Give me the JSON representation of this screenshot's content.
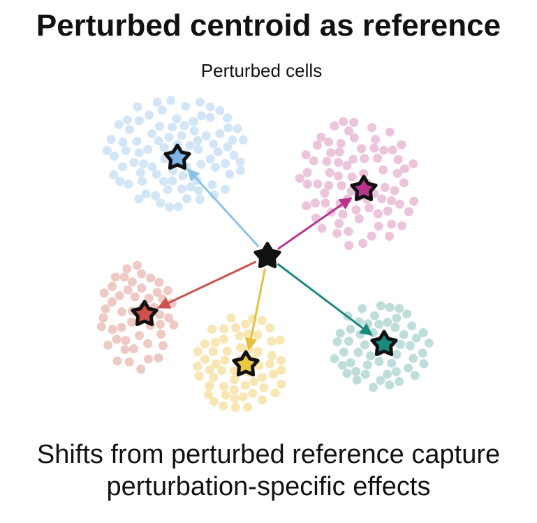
{
  "title": "Perturbed centroid as reference",
  "subtitle": "Perturbed cells",
  "caption": {
    "line1": "Shifts from perturbed reference capture",
    "line2": "perturbation-specific effects"
  },
  "reference": {
    "name": "perturbed-centroid",
    "color": "#111111"
  },
  "clusters": [
    {
      "name": "blue",
      "dot_color": "#d3e6f7",
      "star_color": "#7fb6ea",
      "arrow_color": "#8cc3ea"
    },
    {
      "name": "magenta",
      "dot_color": "#ecc4dc",
      "star_color": "#b8338d",
      "arrow_color": "#b8338d"
    },
    {
      "name": "red",
      "dot_color": "#efc9c4",
      "star_color": "#d0504b",
      "arrow_color": "#d0504b"
    },
    {
      "name": "yellow",
      "dot_color": "#f8e6b3",
      "star_color": "#eac73c",
      "arrow_color": "#e6c13e"
    },
    {
      "name": "teal",
      "dot_color": "#bfdedb",
      "star_color": "#1b8a7e",
      "arrow_color": "#1b8a7e"
    }
  ]
}
